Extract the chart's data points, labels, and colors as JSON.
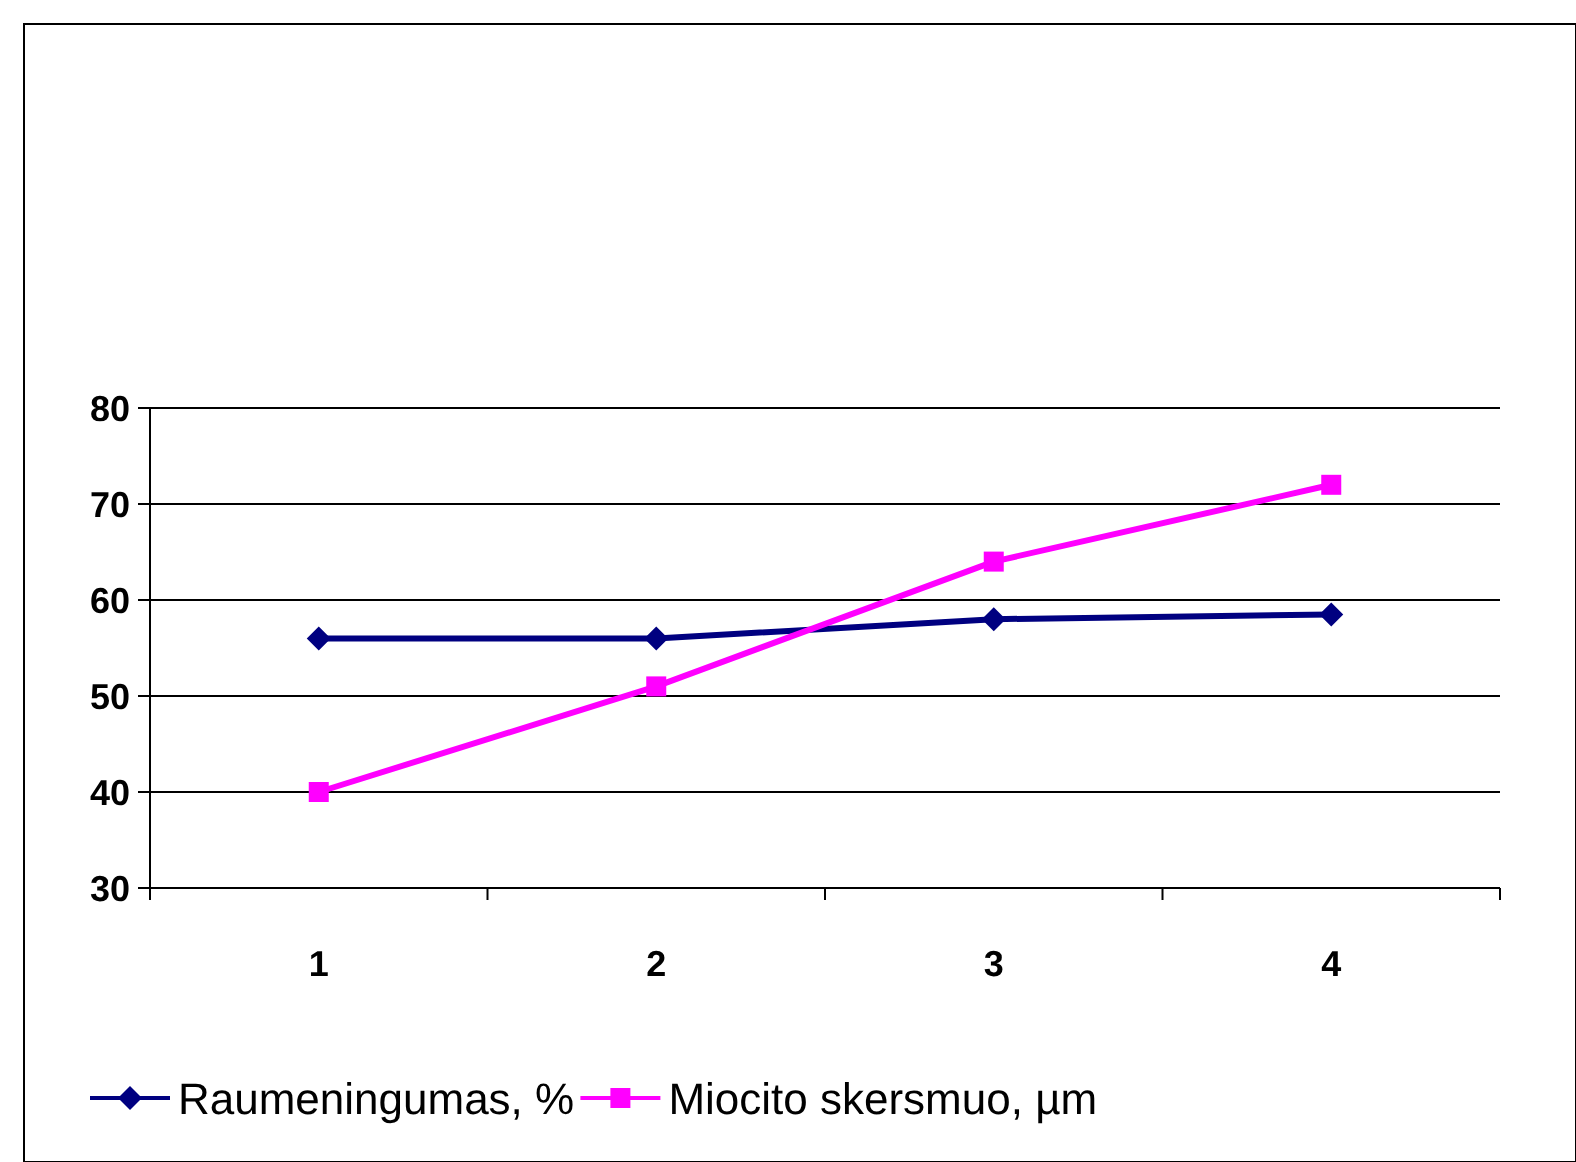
{
  "chart_data": {
    "type": "line",
    "categories": [
      "1",
      "2",
      "3",
      "4"
    ],
    "series": [
      {
        "name": "Raumeningumas, %",
        "color": "#000080",
        "values": [
          56,
          56,
          58,
          58.5
        ],
        "marker": "diamond"
      },
      {
        "name": "Miocito skersmuo, µm",
        "color": "#ff00ff",
        "values": [
          40,
          51,
          64,
          72
        ],
        "marker": "square"
      }
    ],
    "ylim": [
      30,
      80
    ],
    "yticks": [
      30,
      40,
      50,
      60,
      70,
      80
    ],
    "grid": "y",
    "legend": "bottom",
    "line_style": "solid"
  }
}
